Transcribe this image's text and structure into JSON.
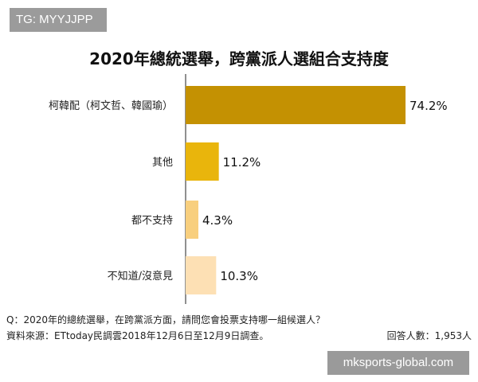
{
  "tag": "TG: MYYJJPP",
  "watermark": "mksports-global.com",
  "chart_data": {
    "type": "bar",
    "orientation": "horizontal",
    "title": "2020年總統選舉，跨黨派人選組合支持度",
    "categories": [
      "柯韓配（柯文哲、韓國瑜）",
      "其他",
      "都不支持",
      "不知道/沒意見"
    ],
    "values": [
      74.2,
      11.2,
      4.3,
      10.3
    ],
    "value_labels": [
      "74.2%",
      "11.2%",
      "4.3%",
      "10.3%"
    ],
    "colors": [
      "#c49102",
      "#e9b50c",
      "#f8cf7e",
      "#fde0b4"
    ],
    "xlim": [
      0,
      100
    ],
    "grid": false,
    "legend": "none"
  },
  "footnote": {
    "question": "Q：2020年的總統選舉，在跨黨派方面，請問您會投票支持哪一組候選人？",
    "source": "資料來源：ETtoday民調雲2018年12月6日至12月9日調查。",
    "respondents": "回答人數：1,953人"
  }
}
